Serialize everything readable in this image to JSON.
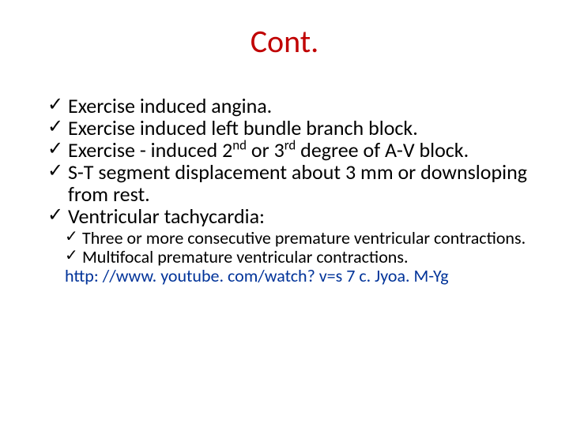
{
  "colors": {
    "title": "#c00000",
    "text": "#000000",
    "link": "#003399",
    "background": "#ffffff"
  },
  "typography": {
    "title_fontsize": 40,
    "bullet_fontsize": 26,
    "sub_bullet_fontsize": 22,
    "link_fontsize": 22,
    "font_family": "Calibri"
  },
  "title": "Cont.",
  "bullets": {
    "b1": "Exercise induced angina.",
    "b2": "Exercise induced left bundle branch block.",
    "b3_pre": "Exercise - induced 2",
    "b3_sup1": "nd",
    "b3_mid": " or 3",
    "b3_sup2": "rd",
    "b3_post": " degree of A-V block.",
    "b4": "S-T segment displacement about 3 mm or downsloping from rest.",
    "b5": "Ventricular tachycardia:"
  },
  "sub_bullets": {
    "s1": "Three or more consecutive premature ventricular contractions.",
    "s2": "Multifocal premature ventricular contractions."
  },
  "link_text": "http: //www. youtube. com/watch? v=s 7 c. Jyoa. M-Yg"
}
